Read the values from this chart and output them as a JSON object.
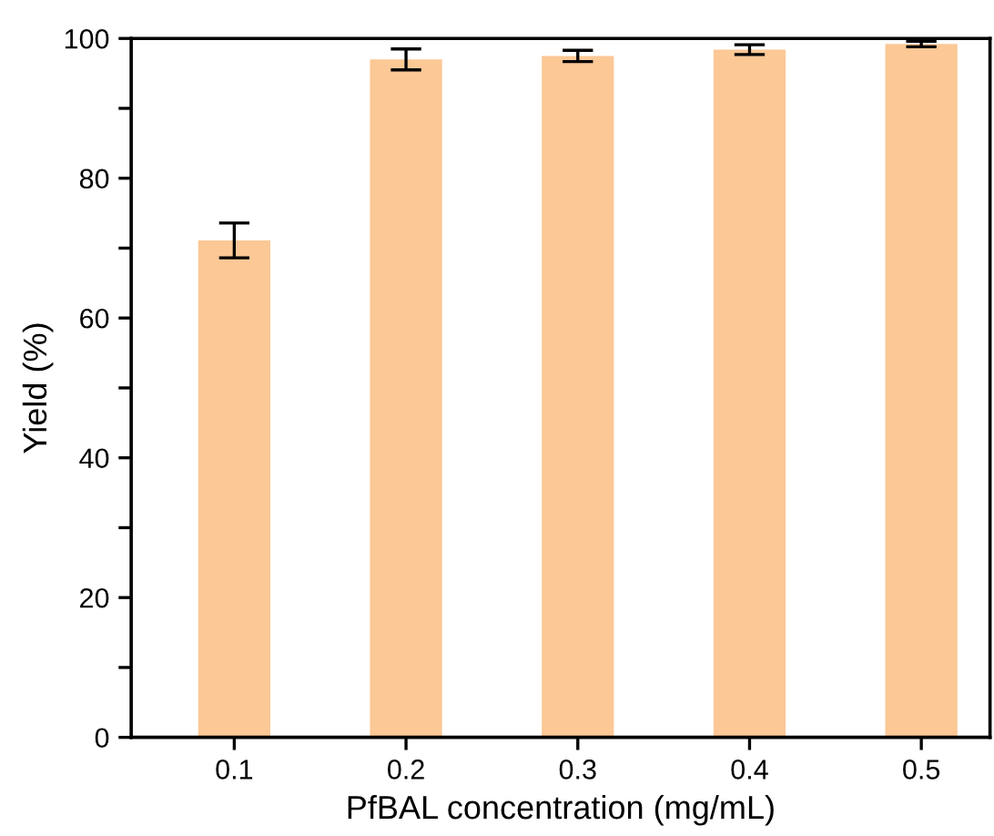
{
  "chart_data": {
    "type": "bar",
    "xlabel": "PfBAL concentration (mg/mL)",
    "ylabel": "Yield (%)",
    "categories": [
      "0.1",
      "0.2",
      "0.3",
      "0.4",
      "0.5"
    ],
    "values": [
      71.1,
      97.0,
      97.5,
      98.4,
      99.2
    ],
    "errors": [
      2.5,
      1.5,
      0.8,
      0.7,
      0.4
    ],
    "color": "#fbc896",
    "ylim": [
      0,
      100
    ],
    "yticks": [
      0,
      {
        "value": 10,
        "label": null
      },
      20,
      {
        "value": 30,
        "label": null
      },
      40,
      {
        "value": 50,
        "label": null
      },
      60,
      {
        "value": 70,
        "label": null
      },
      80,
      {
        "value": 90,
        "label": null
      },
      100
    ],
    "grid": false
  }
}
